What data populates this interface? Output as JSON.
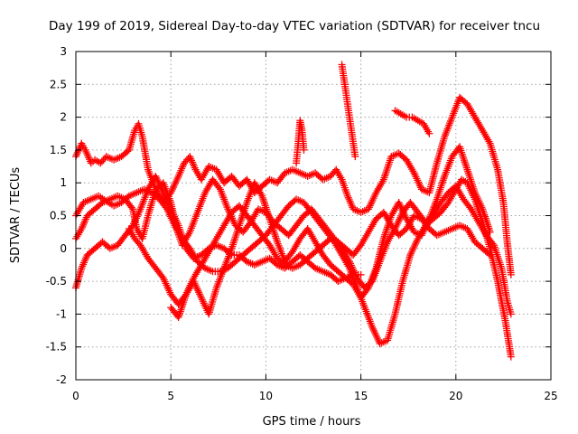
{
  "chart_data": {
    "type": "scatter",
    "title": "Day 199 of 2019, Sidereal Day-to-day VTEC variation (SDTVAR) for receiver tncu",
    "xlabel": "GPS time / hours",
    "ylabel": "SDTVAR / TECUs",
    "xlim": [
      0,
      25
    ],
    "ylim": [
      -2,
      3
    ],
    "x_ticks": [
      "0",
      "5",
      "10",
      "15",
      "20",
      "25"
    ],
    "y_ticks": [
      "-2",
      "-1.5",
      "-1",
      "-0.5",
      "0",
      "0.5",
      "1",
      "1.5",
      "2",
      "2.5",
      "3"
    ],
    "grid": true,
    "legend": "none",
    "marker": "+",
    "color": "#ff0000",
    "series": [
      {
        "x": [
          0,
          0.3,
          0.5,
          0.8,
          1,
          1.3,
          1.6,
          2,
          2.4,
          2.8,
          3.1,
          3.3,
          3.5,
          3.8,
          4.2,
          4.6,
          5,
          5.4,
          5.7,
          6,
          6.3,
          6.6,
          7,
          7.4,
          7.8,
          8.2,
          8.6,
          9,
          9.4,
          9.8,
          10.2,
          10.6,
          11,
          11.4,
          11.8,
          12.2,
          12.6,
          13,
          13.4,
          13.7,
          14,
          14.3,
          14.6,
          15,
          15.4,
          15.8,
          16.2,
          16.6,
          17,
          17.4,
          17.8,
          18.2,
          18.6,
          19,
          19.4,
          19.8,
          20.2,
          20.6,
          21,
          21.4,
          21.8,
          22.2,
          22.5,
          22.7,
          22.9
        ],
        "y": [
          1.4,
          1.6,
          1.5,
          1.3,
          1.35,
          1.3,
          1.4,
          1.35,
          1.4,
          1.5,
          1.8,
          1.9,
          1.7,
          1.2,
          0.9,
          0.7,
          0.85,
          1.1,
          1.3,
          1.4,
          1.2,
          1.05,
          1.25,
          1.2,
          1.0,
          1.1,
          0.95,
          1.05,
          0.85,
          0.95,
          1.05,
          1.0,
          1.15,
          1.2,
          1.15,
          1.1,
          1.15,
          1.05,
          1.1,
          1.2,
          1.05,
          0.8,
          0.6,
          0.55,
          0.6,
          0.85,
          1.05,
          1.4,
          1.45,
          1.35,
          1.15,
          0.9,
          0.85,
          1.3,
          1.7,
          2.0,
          2.3,
          2.2,
          2.0,
          1.8,
          1.6,
          1.2,
          0.7,
          0.1,
          -0.4
        ]
      },
      {
        "x": [
          0,
          0.3,
          0.6,
          1,
          1.4,
          1.8,
          2.2,
          2.6,
          3,
          3.2,
          3.5,
          3.8,
          4.2,
          4.6,
          5,
          5.3,
          5.6,
          6,
          6.4,
          6.8,
          7.2,
          7.6,
          8,
          8.4,
          8.8,
          9.2,
          9.6,
          10,
          10.4,
          10.8,
          11.2,
          11.6,
          12,
          12.4,
          12.8,
          13.2,
          13.6,
          14,
          14.4,
          14.8,
          15.2,
          15.6,
          16,
          16.4,
          16.8,
          17.2,
          17.6,
          18,
          18.4,
          18.8,
          19.2,
          19.6,
          20,
          20.4,
          20.8,
          21.2,
          21.6,
          22,
          22.4,
          22.7,
          22.9
        ],
        "y": [
          0.15,
          0.3,
          0.5,
          0.6,
          0.7,
          0.75,
          0.8,
          0.75,
          0.6,
          0.3,
          0.15,
          0.5,
          0.9,
          1.0,
          0.7,
          0.3,
          0.05,
          0.25,
          0.55,
          0.85,
          1.05,
          0.9,
          0.6,
          0.35,
          0.25,
          0.4,
          0.6,
          0.55,
          0.4,
          0.3,
          0.2,
          0.35,
          0.5,
          0.6,
          0.45,
          0.3,
          0.15,
          0.0,
          -0.2,
          -0.45,
          -0.6,
          -0.5,
          -0.2,
          0.1,
          0.3,
          0.55,
          0.7,
          0.55,
          0.4,
          0.5,
          0.7,
          0.85,
          0.95,
          0.75,
          0.6,
          0.4,
          0.2,
          0.05,
          -0.3,
          -0.8,
          -1.0
        ]
      },
      {
        "x": [
          0,
          0.4,
          0.8,
          1.2,
          1.6,
          2,
          2.4,
          2.8,
          3.2,
          3.6,
          4,
          4.4,
          4.8,
          5.2,
          5.6,
          6,
          6.4,
          6.8,
          7.2,
          7.6,
          8,
          8.4,
          8.8,
          9.2,
          9.6,
          10,
          10.4,
          10.8,
          11.2,
          11.6,
          12,
          12.4,
          12.8,
          13.2,
          13.6,
          14,
          14.4,
          14.8,
          15.2,
          15.6,
          16,
          16.4,
          16.8,
          17.2,
          17.6,
          18,
          18.4,
          18.8,
          19.2,
          19.6,
          20,
          20.3,
          20.6,
          21,
          21.4,
          21.8,
          22.2,
          22.6,
          22.9
        ],
        "y": [
          0.5,
          0.7,
          0.75,
          0.8,
          0.72,
          0.65,
          0.7,
          0.8,
          0.85,
          0.9,
          0.85,
          0.75,
          0.6,
          0.35,
          0.15,
          0.0,
          -0.2,
          -0.3,
          -0.35,
          -0.35,
          -0.3,
          -0.2,
          -0.1,
          0.0,
          0.1,
          0.2,
          0.35,
          0.5,
          0.65,
          0.75,
          0.7,
          0.55,
          0.4,
          0.25,
          0.1,
          -0.1,
          -0.3,
          -0.6,
          -0.9,
          -1.2,
          -1.45,
          -1.4,
          -1.0,
          -0.5,
          -0.1,
          0.15,
          0.35,
          0.45,
          0.55,
          0.7,
          0.9,
          1.05,
          1.0,
          0.75,
          0.4,
          0.0,
          -0.5,
          -1.1,
          -1.65
        ]
      },
      {
        "x": [
          0,
          0.3,
          0.6,
          1,
          1.4,
          1.8,
          2.2,
          2.6,
          3,
          3.4,
          3.8,
          4.2,
          4.6,
          5,
          5.4,
          5.8,
          6.2,
          6.6,
          7,
          7.4,
          7.8,
          8.2,
          8.6,
          9,
          9.4,
          9.8,
          10.2,
          10.6,
          11,
          11.4,
          11.8,
          12.2,
          12.6,
          13,
          13.4,
          13.8,
          14.2,
          14.6,
          15
        ],
        "y": [
          -0.6,
          -0.3,
          -0.1,
          0.0,
          0.1,
          0.0,
          0.05,
          0.2,
          0.35,
          0.6,
          0.9,
          1.1,
          0.85,
          0.6,
          0.35,
          0.0,
          -0.15,
          -0.1,
          0.0,
          0.05,
          0.0,
          -0.1,
          -0.1,
          -0.2,
          -0.25,
          -0.2,
          -0.15,
          -0.25,
          -0.3,
          -0.2,
          -0.1,
          -0.2,
          -0.3,
          -0.35,
          -0.4,
          -0.5,
          -0.45,
          -0.4,
          -0.4
        ]
      },
      {
        "x": [
          2.8,
          3.1,
          3.4,
          3.8,
          4.2,
          4.6,
          5,
          5.4,
          5.8,
          6.2,
          6.6,
          7,
          7.4,
          7.8,
          8.2,
          8.6,
          9,
          9.4,
          9.8,
          10.2,
          10.6,
          11,
          11.4,
          11.8,
          12.2,
          12.6,
          13,
          13.4,
          13.8,
          14.2,
          14.6,
          15,
          15.4,
          15.8,
          16.2,
          16.6,
          17,
          17.4,
          17.8,
          18.2,
          18.6,
          19,
          19.4,
          19.8,
          20.2,
          20.6,
          21,
          21.4,
          21.8
        ],
        "y": [
          0.3,
          0.15,
          0.05,
          -0.15,
          -0.3,
          -0.45,
          -0.7,
          -0.85,
          -0.7,
          -0.45,
          -0.25,
          -0.05,
          0.15,
          0.35,
          0.55,
          0.65,
          0.5,
          0.35,
          0.2,
          0.05,
          -0.15,
          -0.25,
          -0.3,
          -0.25,
          -0.15,
          -0.05,
          0.05,
          0.15,
          0.1,
          0.0,
          -0.1,
          0.05,
          0.25,
          0.45,
          0.55,
          0.35,
          0.2,
          0.3,
          0.5,
          0.45,
          0.3,
          0.2,
          0.25,
          0.3,
          0.35,
          0.3,
          0.1,
          0.0,
          -0.1
        ]
      },
      {
        "x": [
          5,
          5.4,
          5.8,
          6.2,
          6.6,
          7,
          7.4,
          7.8,
          8.2,
          8.6,
          9,
          9.4,
          9.8,
          10.2,
          10.6,
          11,
          11.4,
          11.8,
          12.2,
          12.6,
          13,
          13.4,
          13.8,
          14.2,
          14.6,
          15,
          15.4,
          15.8,
          16.2,
          16.6,
          17,
          17.4,
          17.8,
          18.2,
          18.6,
          19,
          19.4,
          19.8,
          20.2,
          20.6,
          21,
          21.4,
          21.8
        ],
        "y": [
          -0.9,
          -1.05,
          -0.7,
          -0.5,
          -0.75,
          -1.0,
          -0.6,
          -0.3,
          0.0,
          0.35,
          0.7,
          1.0,
          0.8,
          0.45,
          0.1,
          -0.2,
          -0.05,
          0.15,
          0.3,
          0.1,
          -0.1,
          -0.25,
          -0.35,
          -0.45,
          -0.55,
          -0.75,
          -0.6,
          -0.3,
          0.15,
          0.5,
          0.7,
          0.45,
          0.25,
          0.2,
          0.45,
          0.75,
          1.1,
          1.4,
          1.55,
          1.2,
          0.85,
          0.6,
          0.25
        ]
      },
      {
        "x": [
          11.6,
          11.7,
          11.8,
          11.9,
          12.0
        ],
        "y": [
          1.3,
          1.6,
          1.95,
          1.8,
          1.5
        ]
      },
      {
        "x": [
          14.0,
          14.1,
          14.2,
          14.3,
          14.4,
          14.5,
          14.6,
          14.7
        ],
        "y": [
          2.8,
          2.6,
          2.4,
          2.2,
          2.0,
          1.8,
          1.6,
          1.4
        ]
      },
      {
        "x": [
          16.8,
          17.1,
          17.4,
          17.7,
          18,
          18.3,
          18.6
        ],
        "y": [
          2.1,
          2.05,
          2.0,
          2.0,
          1.95,
          1.9,
          1.75
        ]
      }
    ]
  }
}
